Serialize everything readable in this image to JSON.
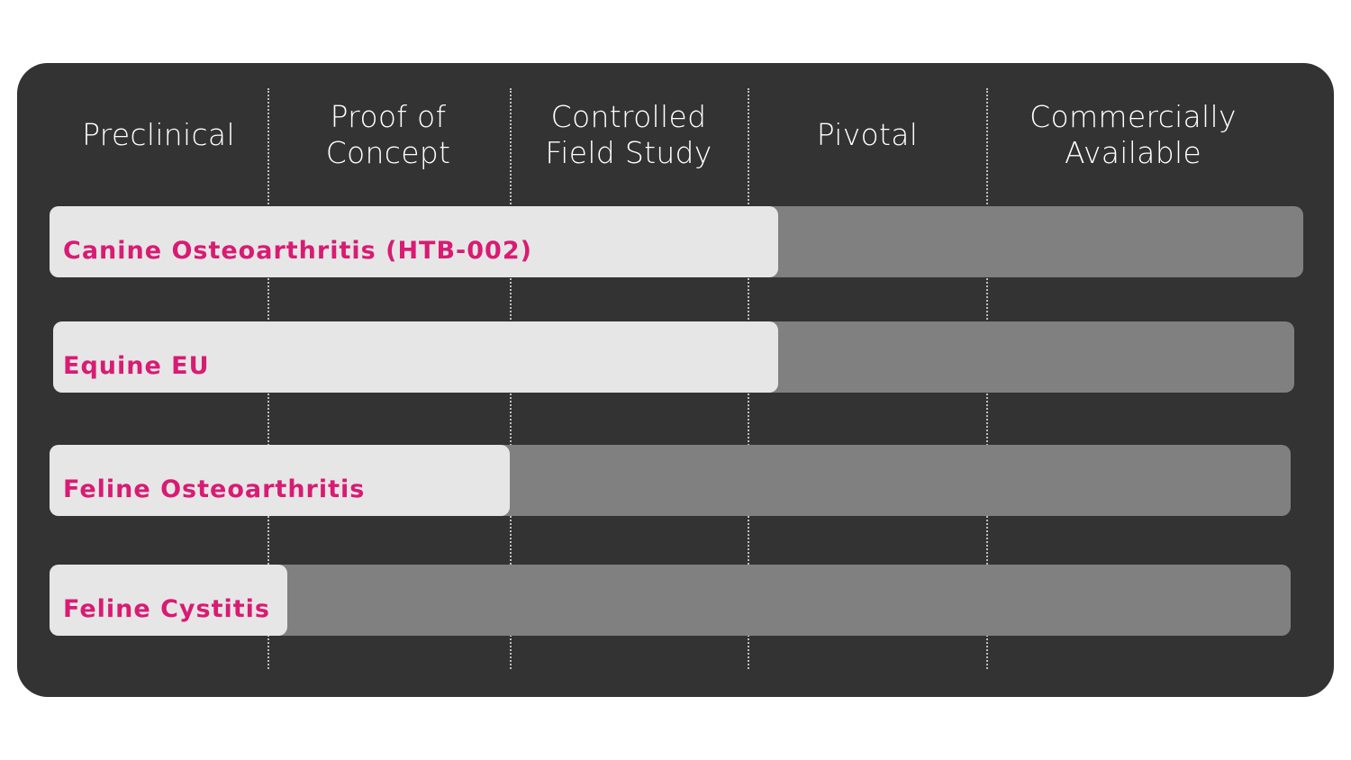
{
  "chart_data": {
    "type": "bar",
    "orientation": "horizontal",
    "stages": [
      "Preclinical",
      "Proof of\nConcept",
      "Controlled\nField Study",
      "Pivotal",
      "Commercially\nAvailable"
    ],
    "categories": [
      "Canine Osteoarthritis (HTB-002)",
      "Equine EU",
      "Feline Osteoarthritis",
      "Feline Cystitis"
    ],
    "values_stage_progress": [
      3.13,
      3.13,
      2.0,
      1.08
    ],
    "xlim": [
      0,
      5
    ],
    "grid": "dotted vertical stage dividers",
    "colors": {
      "background": "#333333",
      "fill": "#e6e6e6",
      "track": "#808080",
      "label": "#d81b73",
      "header_text": "#ffffff"
    }
  }
}
